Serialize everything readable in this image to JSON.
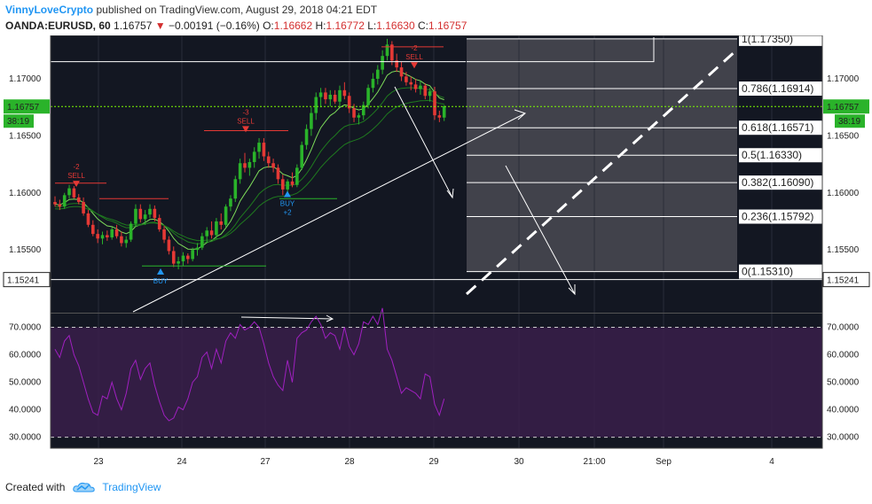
{
  "header": {
    "author": "VinnyLoveCrypto",
    "published": " published on TradingView.com, August 29, 2018 04:21 EDT",
    "symbol": "OANDA:EURUSD, 60",
    "last": "1.16757",
    "change": "−0.00191 (−0.16%)",
    "o_label": "O:",
    "o": "1.16662",
    "h_label": "H:",
    "h": "1.16772",
    "l_label": "L:",
    "l": "1.16630",
    "c_label": "C:",
    "c": "1.16757"
  },
  "footer": {
    "created_with": "Created with",
    "brand": "TradingView"
  },
  "colors": {
    "up": "#2ab32a",
    "down": "#e53935",
    "ema_fast": "#7ddc5a",
    "ema_slow": "#1f7a1f",
    "rsi": "#a020c0",
    "rsi_band": "#3a1f4a",
    "fib_zone": "#4a4a52",
    "bg": "#131722",
    "sell": "#e53935",
    "buy": "#2196f3"
  },
  "chart_data": [
    {
      "type": "candlestick",
      "title": "OANDA:EURUSD, 60",
      "ylim": [
        1.1495,
        1.1738
      ],
      "yticks": [
        "1.17000",
        "1.16500",
        "1.16000",
        "1.15500"
      ],
      "xticks": [
        "23",
        "24",
        "27",
        "28",
        "29",
        "30",
        "21:00",
        "Sep",
        "4"
      ],
      "price_labels": {
        "current": "1.16757",
        "countdown": "38:19",
        "low": "1.15241"
      },
      "fibonacci": [
        {
          "label": "1(1.17350)",
          "value": 1.1735
        },
        {
          "label": "0.786(1.16914)",
          "value": 1.16914
        },
        {
          "label": "0.618(1.16571)",
          "value": 1.16571
        },
        {
          "label": "0.5(1.16330)",
          "value": 1.1633
        },
        {
          "label": "0.382(1.16090)",
          "value": 1.1609
        },
        {
          "label": "0.236(1.15792)",
          "value": 1.15792
        },
        {
          "label": "0(1.15310)",
          "value": 1.1531
        }
      ],
      "signals": [
        {
          "text": "SELL",
          "count": "-2",
          "kind": "sell"
        },
        {
          "text": "SELL",
          "count": "-3",
          "kind": "sell"
        },
        {
          "text": "SELL",
          "count": "-2",
          "kind": "sell"
        },
        {
          "text": "BUY",
          "count": "+2",
          "kind": "buy"
        },
        {
          "text": "BUY",
          "count": "",
          "kind": "buy"
        }
      ],
      "candles": [
        [
          1.1592,
          1.1597,
          1.1588,
          1.159
        ],
        [
          1.159,
          1.1594,
          1.1585,
          1.1588
        ],
        [
          1.1588,
          1.16,
          1.1586,
          1.1598
        ],
        [
          1.1598,
          1.1607,
          1.1595,
          1.1604
        ],
        [
          1.1604,
          1.1606,
          1.1595,
          1.1596
        ],
        [
          1.1596,
          1.1599,
          1.159,
          1.1592
        ],
        [
          1.1592,
          1.1596,
          1.158,
          1.1582
        ],
        [
          1.1582,
          1.1585,
          1.157,
          1.1572
        ],
        [
          1.1572,
          1.1576,
          1.1562,
          1.1564
        ],
        [
          1.1564,
          1.1568,
          1.1556,
          1.156
        ],
        [
          1.156,
          1.1566,
          1.1555,
          1.1563
        ],
        [
          1.1563,
          1.1567,
          1.1558,
          1.1561
        ],
        [
          1.1561,
          1.157,
          1.1559,
          1.1568
        ],
        [
          1.1568,
          1.1572,
          1.156,
          1.1562
        ],
        [
          1.1562,
          1.1566,
          1.1553,
          1.1556
        ],
        [
          1.1556,
          1.1562,
          1.1552,
          1.1559
        ],
        [
          1.1559,
          1.1575,
          1.1557,
          1.1573
        ],
        [
          1.1573,
          1.159,
          1.157,
          1.1586
        ],
        [
          1.1586,
          1.159,
          1.1574,
          1.1577
        ],
        [
          1.1577,
          1.1585,
          1.1572,
          1.1581
        ],
        [
          1.1581,
          1.159,
          1.1578,
          1.1586
        ],
        [
          1.1586,
          1.1589,
          1.1575,
          1.1578
        ],
        [
          1.1578,
          1.1581,
          1.1566,
          1.1568
        ],
        [
          1.1568,
          1.1571,
          1.1556,
          1.1559
        ],
        [
          1.1559,
          1.1562,
          1.1546,
          1.1549
        ],
        [
          1.1549,
          1.1553,
          1.1535,
          1.1538
        ],
        [
          1.1538,
          1.1544,
          1.1533,
          1.154
        ],
        [
          1.154,
          1.1548,
          1.1536,
          1.1545
        ],
        [
          1.1545,
          1.1547,
          1.1538,
          1.1542
        ],
        [
          1.1542,
          1.1552,
          1.154,
          1.155
        ],
        [
          1.155,
          1.1556,
          1.1545,
          1.1552
        ],
        [
          1.1552,
          1.1565,
          1.155,
          1.1562
        ],
        [
          1.1562,
          1.157,
          1.1556,
          1.1567
        ],
        [
          1.1567,
          1.1575,
          1.156,
          1.1563
        ],
        [
          1.1563,
          1.1578,
          1.156,
          1.1575
        ],
        [
          1.1575,
          1.1582,
          1.1568,
          1.1572
        ],
        [
          1.1572,
          1.159,
          1.157,
          1.1588
        ],
        [
          1.1588,
          1.1598,
          1.1584,
          1.1595
        ],
        [
          1.1595,
          1.1615,
          1.1592,
          1.1612
        ],
        [
          1.1612,
          1.163,
          1.1608,
          1.1626
        ],
        [
          1.1626,
          1.1635,
          1.1618,
          1.1622
        ],
        [
          1.1622,
          1.163,
          1.1615,
          1.1627
        ],
        [
          1.1627,
          1.164,
          1.1622,
          1.1636
        ],
        [
          1.1636,
          1.1648,
          1.163,
          1.1644
        ],
        [
          1.1644,
          1.1648,
          1.1628,
          1.1632
        ],
        [
          1.1632,
          1.1636,
          1.1622,
          1.1626
        ],
        [
          1.1626,
          1.163,
          1.1618,
          1.1622
        ],
        [
          1.1622,
          1.1625,
          1.1608,
          1.1612
        ],
        [
          1.1612,
          1.1616,
          1.1598,
          1.1603
        ],
        [
          1.1603,
          1.1612,
          1.16,
          1.161
        ],
        [
          1.161,
          1.1618,
          1.1605,
          1.1607
        ],
        [
          1.1607,
          1.1625,
          1.1605,
          1.1622
        ],
        [
          1.1622,
          1.1645,
          1.162,
          1.1642
        ],
        [
          1.1642,
          1.166,
          1.1638,
          1.1656
        ],
        [
          1.1656,
          1.1675,
          1.165,
          1.167
        ],
        [
          1.167,
          1.1688,
          1.1664,
          1.1684
        ],
        [
          1.1684,
          1.1692,
          1.1675,
          1.1688
        ],
        [
          1.1688,
          1.1692,
          1.1678,
          1.1682
        ],
        [
          1.1682,
          1.169,
          1.1676,
          1.1686
        ],
        [
          1.1686,
          1.169,
          1.1678,
          1.168
        ],
        [
          1.168,
          1.1694,
          1.1676,
          1.169
        ],
        [
          1.169,
          1.1697,
          1.1682,
          1.1685
        ],
        [
          1.1685,
          1.1688,
          1.167,
          1.1674
        ],
        [
          1.1674,
          1.1678,
          1.1662,
          1.1666
        ],
        [
          1.1666,
          1.167,
          1.166,
          1.1668
        ],
        [
          1.1668,
          1.168,
          1.1664,
          1.1677
        ],
        [
          1.1677,
          1.1695,
          1.1674,
          1.1692
        ],
        [
          1.1692,
          1.1705,
          1.1688,
          1.17
        ],
        [
          1.17,
          1.1712,
          1.1695,
          1.1708
        ],
        [
          1.1708,
          1.1725,
          1.1704,
          1.172
        ],
        [
          1.172,
          1.1735,
          1.1716,
          1.173
        ],
        [
          1.173,
          1.1733,
          1.1712,
          1.1716
        ],
        [
          1.1716,
          1.1722,
          1.1706,
          1.171
        ],
        [
          1.171,
          1.1715,
          1.1698,
          1.1702
        ],
        [
          1.1702,
          1.1706,
          1.1694,
          1.1697
        ],
        [
          1.1697,
          1.1702,
          1.169,
          1.1695
        ],
        [
          1.1695,
          1.17,
          1.1688,
          1.1691
        ],
        [
          1.1691,
          1.1698,
          1.1686,
          1.1694
        ],
        [
          1.1694,
          1.1696,
          1.1682,
          1.1685
        ],
        [
          1.1685,
          1.1692,
          1.168,
          1.1689
        ],
        [
          1.1689,
          1.1693,
          1.1664,
          1.1668
        ],
        [
          1.1668,
          1.1672,
          1.1662,
          1.1666
        ],
        [
          1.1666,
          1.1677,
          1.1663,
          1.1676
        ]
      ]
    },
    {
      "type": "line",
      "title": "RSI",
      "ylim": [
        26,
        75
      ],
      "yticks": [
        "70.0000",
        "60.0000",
        "50.0000",
        "40.0000",
        "30.0000"
      ],
      "bands": [
        70,
        30
      ],
      "values": [
        62,
        59,
        65,
        67,
        60,
        56,
        50,
        44,
        39,
        38,
        45,
        44,
        50,
        44,
        40,
        46,
        55,
        58,
        51,
        55,
        57,
        49,
        43,
        38,
        36,
        37,
        41,
        40,
        44,
        50,
        52,
        59,
        61,
        55,
        62,
        57,
        65,
        68,
        66,
        71,
        69,
        70,
        72,
        70,
        64,
        57,
        52,
        49,
        47,
        58,
        50,
        66,
        68,
        69,
        72,
        74,
        71,
        66,
        68,
        67,
        62,
        70,
        63,
        60,
        64,
        72,
        71,
        74,
        71,
        77,
        62,
        58,
        52,
        46,
        48,
        47,
        46,
        44,
        53,
        52,
        42,
        38,
        44
      ]
    }
  ]
}
